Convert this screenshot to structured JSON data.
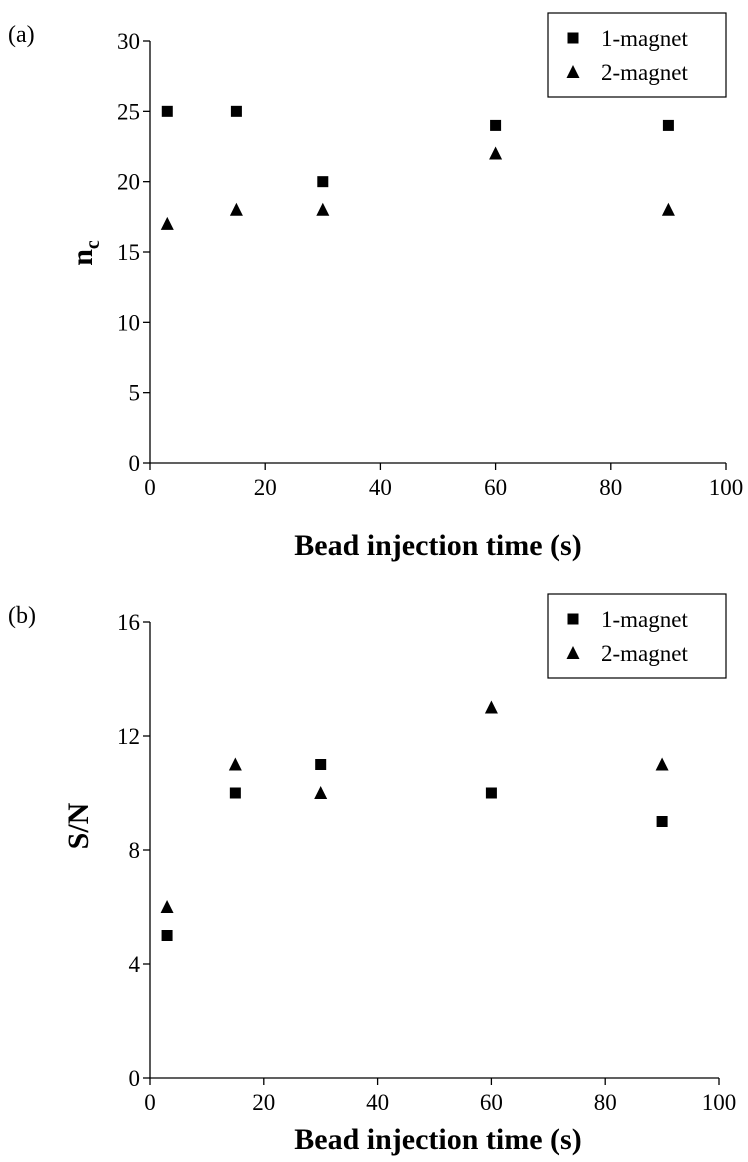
{
  "chart_data": [
    {
      "type": "scatter",
      "panel_label": "(a)",
      "title": "",
      "xlabel": "Bead injection time (s)",
      "ylabel_main": "n",
      "ylabel_sub": "c",
      "xlim": [
        0,
        100
      ],
      "ylim": [
        0,
        30
      ],
      "x_ticks": [
        0,
        20,
        40,
        60,
        80,
        100
      ],
      "y_ticks": [
        0,
        5,
        10,
        15,
        20,
        25,
        30
      ],
      "legend_position": "top-right",
      "grid": false,
      "series": [
        {
          "name": "1-magnet",
          "marker": "square",
          "color": "#000000",
          "points": [
            {
              "x": 3,
              "y": 25
            },
            {
              "x": 15,
              "y": 25
            },
            {
              "x": 30,
              "y": 20
            },
            {
              "x": 60,
              "y": 24
            },
            {
              "x": 90,
              "y": 24
            }
          ]
        },
        {
          "name": "2-magnet",
          "marker": "triangle",
          "color": "#000000",
          "points": [
            {
              "x": 3,
              "y": 17
            },
            {
              "x": 15,
              "y": 18
            },
            {
              "x": 30,
              "y": 18
            },
            {
              "x": 60,
              "y": 22
            },
            {
              "x": 90,
              "y": 18
            }
          ]
        }
      ]
    },
    {
      "type": "scatter",
      "panel_label": "(b)",
      "title": "",
      "xlabel": "Bead injection time (s)",
      "ylabel_main": "S/N",
      "ylabel_sub": "",
      "xlim": [
        0,
        100
      ],
      "ylim": [
        0,
        16
      ],
      "x_ticks": [
        0,
        20,
        40,
        60,
        80,
        100
      ],
      "y_ticks": [
        0,
        4,
        8,
        12,
        16
      ],
      "legend_position": "top-right",
      "grid": false,
      "series": [
        {
          "name": "1-magnet",
          "marker": "square",
          "color": "#000000",
          "points": [
            {
              "x": 3,
              "y": 5
            },
            {
              "x": 15,
              "y": 10
            },
            {
              "x": 30,
              "y": 11
            },
            {
              "x": 60,
              "y": 10
            },
            {
              "x": 90,
              "y": 9
            }
          ]
        },
        {
          "name": "2-magnet",
          "marker": "triangle",
          "color": "#000000",
          "points": [
            {
              "x": 3,
              "y": 6
            },
            {
              "x": 15,
              "y": 11
            },
            {
              "x": 30,
              "y": 10
            },
            {
              "x": 60,
              "y": 13
            },
            {
              "x": 90,
              "y": 11
            }
          ]
        }
      ]
    }
  ]
}
